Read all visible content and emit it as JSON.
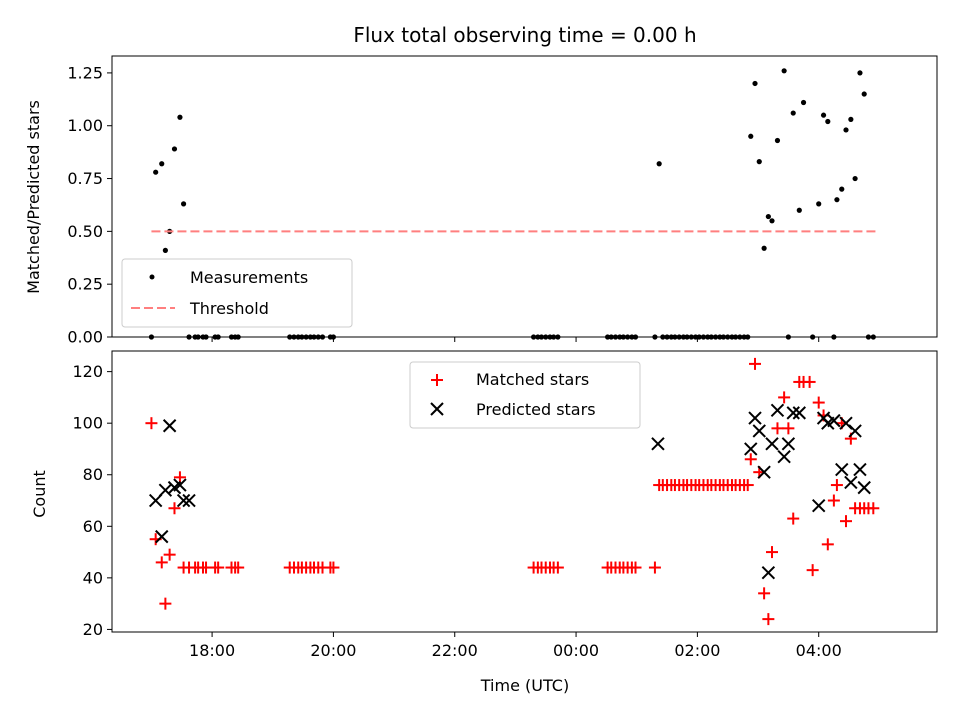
{
  "chart_data": [
    {
      "type": "scatter",
      "title": "Flux total observing time = 0.00 h",
      "xlabel": "",
      "ylabel": "Matched/Predicted stars",
      "xlim": [
        16.35,
        29.95
      ],
      "ylim": [
        0,
        1.33
      ],
      "yticks": [
        0,
        0.25,
        0.5,
        0.75,
        1.0,
        1.25
      ],
      "ytick_labels": [
        "0.00",
        "0.25",
        "0.50",
        "0.75",
        "1.00",
        "1.25"
      ],
      "series": [
        {
          "name": "Measurements",
          "color": "#000000",
          "marker": "dot",
          "x": [
            17.0,
            17.07,
            17.17,
            17.23,
            17.3,
            17.38,
            17.47,
            17.53,
            17.62,
            17.72,
            17.77,
            17.85,
            17.9,
            18.05,
            18.1,
            18.32,
            18.38,
            18.43,
            19.28,
            19.35,
            19.42,
            19.48,
            19.55,
            19.62,
            19.68,
            19.75,
            19.82,
            19.95,
            20.0,
            23.3,
            23.37,
            23.43,
            23.5,
            23.57,
            23.63,
            23.7,
            24.52,
            24.58,
            24.65,
            24.72,
            24.78,
            24.85,
            24.92,
            24.98,
            25.3,
            25.37,
            25.43,
            25.5,
            25.57,
            25.63,
            25.7,
            25.77,
            25.83,
            25.9,
            25.97,
            26.03,
            26.1,
            26.17,
            26.23,
            26.3,
            26.37,
            26.43,
            26.5,
            26.57,
            26.63,
            26.7,
            26.77,
            26.83,
            26.88,
            26.95,
            27.02,
            27.1,
            27.17,
            27.23,
            27.32,
            27.43,
            27.5,
            27.58,
            27.68,
            27.75,
            27.9,
            28.0,
            28.08,
            28.15,
            28.25,
            28.3,
            28.38,
            28.45,
            28.53,
            28.6,
            28.68,
            28.75,
            28.82,
            28.9
          ],
          "y": [
            0.0,
            0.78,
            0.82,
            0.41,
            0.5,
            0.89,
            1.04,
            0.63,
            0.0,
            0.0,
            0.0,
            0.0,
            0.0,
            0.0,
            0.0,
            0.0,
            0.0,
            0.0,
            0.0,
            0.0,
            0.0,
            0.0,
            0.0,
            0.0,
            0.0,
            0.0,
            0.0,
            0.0,
            0.0,
            0.0,
            0.0,
            0.0,
            0.0,
            0.0,
            0.0,
            0.0,
            0.0,
            0.0,
            0.0,
            0.0,
            0.0,
            0.0,
            0.0,
            0.0,
            0.0,
            0.82,
            0.0,
            0.0,
            0.0,
            0.0,
            0.0,
            0.0,
            0.0,
            0.0,
            0.0,
            0.0,
            0.0,
            0.0,
            0.0,
            0.0,
            0.0,
            0.0,
            0.0,
            0.0,
            0.0,
            0.0,
            0.0,
            0.0,
            0.95,
            1.2,
            0.83,
            0.42,
            0.57,
            0.55,
            0.93,
            1.26,
            0.0,
            1.06,
            0.6,
            1.11,
            0.0,
            0.63,
            1.05,
            1.02,
            0.0,
            0.65,
            0.7,
            0.98,
            1.03,
            0.75,
            1.25,
            1.15,
            0.0,
            0.0
          ]
        },
        {
          "name": "Threshold",
          "color": "#ff7f7f",
          "style": "dashed",
          "x": [
            17.0,
            29.0
          ],
          "y": [
            0.5,
            0.5
          ]
        }
      ],
      "legend": [
        "Measurements",
        "Threshold"
      ],
      "legend_position": "lower-left"
    },
    {
      "type": "scatter",
      "title": "",
      "xlabel": "Time (UTC)",
      "ylabel": "Count",
      "xlim": [
        16.35,
        29.95
      ],
      "ylim": [
        19,
        128
      ],
      "yticks": [
        20,
        40,
        60,
        80,
        100,
        120
      ],
      "ytick_labels": [
        "20",
        "40",
        "60",
        "80",
        "100",
        "120"
      ],
      "xticks": [
        18,
        20,
        22,
        24,
        26,
        28
      ],
      "xtick_labels": [
        "18:00",
        "20:00",
        "22:00",
        "00:00",
        "02:00",
        "04:00"
      ],
      "series": [
        {
          "name": "Matched stars",
          "color": "#ff0000",
          "marker": "plus",
          "x": [
            17.0,
            17.07,
            17.17,
            17.23,
            17.3,
            17.38,
            17.47,
            17.53,
            17.62,
            17.72,
            17.77,
            17.85,
            17.9,
            18.05,
            18.1,
            18.32,
            18.38,
            18.43,
            19.28,
            19.35,
            19.42,
            19.48,
            19.55,
            19.62,
            19.68,
            19.75,
            19.82,
            19.95,
            20.0,
            23.3,
            23.37,
            23.43,
            23.5,
            23.57,
            23.63,
            23.7,
            24.52,
            24.58,
            24.65,
            24.72,
            24.78,
            24.85,
            24.92,
            24.98,
            25.3,
            25.37,
            25.43,
            25.5,
            25.57,
            25.63,
            25.7,
            25.77,
            25.83,
            25.9,
            25.97,
            26.03,
            26.1,
            26.17,
            26.23,
            26.3,
            26.37,
            26.43,
            26.5,
            26.57,
            26.63,
            26.7,
            26.77,
            26.83,
            26.88,
            26.95,
            27.02,
            27.1,
            27.17,
            27.23,
            27.32,
            27.43,
            27.5,
            27.58,
            27.68,
            27.75,
            27.85,
            27.9,
            28.0,
            28.08,
            28.15,
            28.25,
            28.3,
            28.38,
            28.45,
            28.53,
            28.6,
            28.68,
            28.75,
            28.82,
            28.9
          ],
          "y": [
            100,
            55,
            46,
            30,
            49,
            67,
            79,
            44,
            44,
            44,
            44,
            44,
            44,
            44,
            44,
            44,
            44,
            44,
            44,
            44,
            44,
            44,
            44,
            44,
            44,
            44,
            44,
            44,
            44,
            44,
            44,
            44,
            44,
            44,
            44,
            44,
            44,
            44,
            44,
            44,
            44,
            44,
            44,
            44,
            44,
            76,
            76,
            76,
            76,
            76,
            76,
            76,
            76,
            76,
            76,
            76,
            76,
            76,
            76,
            76,
            76,
            76,
            76,
            76,
            76,
            76,
            76,
            76,
            86,
            123,
            81,
            34,
            24,
            50,
            98,
            110,
            98,
            63,
            116,
            116,
            116,
            43,
            108,
            103,
            53,
            70,
            76,
            100,
            62,
            94,
            67,
            67,
            67,
            67,
            67
          ]
        },
        {
          "name": "Predicted stars",
          "color": "#000000",
          "marker": "x",
          "x": [
            17.07,
            17.17,
            17.23,
            17.3,
            17.38,
            17.47,
            17.53,
            17.62,
            25.35,
            26.88,
            26.95,
            27.02,
            27.1,
            27.17,
            27.23,
            27.32,
            27.43,
            27.5,
            27.58,
            27.68,
            28.0,
            28.08,
            28.15,
            28.25,
            28.38,
            28.45,
            28.53,
            28.6,
            28.68,
            28.75
          ],
          "y": [
            70,
            56,
            74,
            99,
            75,
            76,
            70,
            70,
            92,
            90,
            102,
            97,
            81,
            42,
            92,
            105,
            87,
            92,
            104,
            104,
            68,
            102,
            100,
            101,
            82,
            100,
            77,
            97,
            82,
            75
          ]
        }
      ],
      "legend": [
        "Matched stars",
        "Predicted stars"
      ],
      "legend_position": "upper-center"
    }
  ]
}
